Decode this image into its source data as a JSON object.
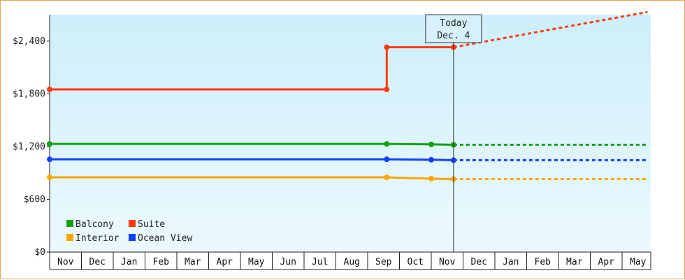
{
  "chart_data": {
    "type": "line",
    "title": "",
    "xlabel": "",
    "ylabel": "",
    "yticks": [
      "$0",
      "$600",
      "$1,200",
      "$1,800",
      "$2,400"
    ],
    "ylim": [
      0,
      2400
    ],
    "months": [
      "Nov",
      "Dec",
      "Jan",
      "Feb",
      "Mar",
      "Apr",
      "May",
      "Jun",
      "Jul",
      "Aug",
      "Sep",
      "Oct",
      "Nov",
      "Dec",
      "Jan",
      "Feb",
      "Mar",
      "Apr",
      "May"
    ],
    "today": {
      "line1": "Today",
      "line2": "Dec. 4",
      "month_index": 12.7
    },
    "legend": [
      {
        "name": "Balcony",
        "color": "#13a013"
      },
      {
        "name": "Suite",
        "color": "#ff3b10"
      },
      {
        "name": "Interior",
        "color": "#ffa500"
      },
      {
        "name": "Ocean View",
        "color": "#1040ff"
      }
    ],
    "series": [
      {
        "name": "Suite",
        "color": "#ff3b10",
        "points": [
          [
            0,
            1850
          ],
          [
            10.6,
            1850
          ],
          [
            10.6,
            2330
          ],
          [
            12.7,
            2330
          ]
        ],
        "forecast": [
          [
            12.7,
            2330
          ],
          [
            18.8,
            2730
          ]
        ]
      },
      {
        "name": "Balcony",
        "color": "#13a013",
        "points": [
          [
            0,
            1230
          ],
          [
            10.6,
            1230
          ],
          [
            12.0,
            1225
          ],
          [
            12.7,
            1220
          ]
        ],
        "forecast": [
          [
            12.7,
            1220
          ],
          [
            18.8,
            1220
          ]
        ]
      },
      {
        "name": "Ocean View",
        "color": "#1040ff",
        "points": [
          [
            0,
            1055
          ],
          [
            10.6,
            1055
          ],
          [
            12.0,
            1050
          ],
          [
            12.7,
            1045
          ]
        ],
        "forecast": [
          [
            12.7,
            1045
          ],
          [
            18.8,
            1045
          ]
        ]
      },
      {
        "name": "Interior",
        "color": "#ffa500",
        "points": [
          [
            0,
            850
          ],
          [
            10.6,
            850
          ],
          [
            12.0,
            835
          ],
          [
            12.7,
            830
          ]
        ],
        "forecast": [
          [
            12.7,
            830
          ],
          [
            18.8,
            830
          ]
        ]
      }
    ]
  }
}
